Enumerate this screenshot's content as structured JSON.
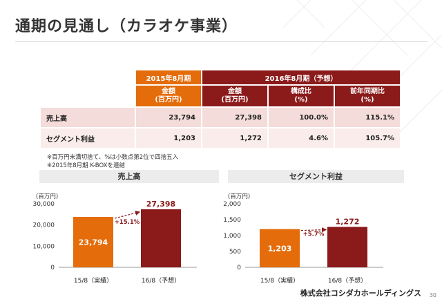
{
  "page": {
    "title": "通期の見通し（カラオケ事業）",
    "company": "株式会社コシダカホールディングス",
    "page_number": "30"
  },
  "table": {
    "header_2015": "2015年8月期",
    "header_2016": "2016年8月期（予想）",
    "sub_amount_2015": "金額\n(百万円)",
    "sub_amount_2016": "金額\n(百万円)",
    "sub_ratio": "構成比\n(%)",
    "sub_yoy": "前年同期比\n(%)",
    "rows": [
      {
        "label": "売上高",
        "v2015": "23,794",
        "v2016": "27,398",
        "ratio": "100.0%",
        "yoy": "115.1%"
      },
      {
        "label": "セグメント利益",
        "v2015": "1,203",
        "v2016": "1,272",
        "ratio": "4.6%",
        "yoy": "105.7%"
      }
    ]
  },
  "notes": [
    "※百万円未満切捨て、%は小数点第2位で四捨五入",
    "※2015年8月期 K-BOXを連結"
  ],
  "colors": {
    "orange": "#e46c0a",
    "red": "#8b1a1a",
    "arrow": "#8b1a1a",
    "growth_text": "#8b1a1a"
  },
  "chart_data": [
    {
      "type": "bar",
      "title": "売上高",
      "unit": "(百万円)",
      "categories": [
        "15/8（実績）",
        "16/8（予想）"
      ],
      "values": [
        23794,
        27398
      ],
      "value_labels": [
        "23,794",
        "27,398"
      ],
      "yticks": [
        "30,000",
        "20,000",
        "10,000",
        "0"
      ],
      "ylim": [
        0,
        30000
      ],
      "growth_label": "+15.1%"
    },
    {
      "type": "bar",
      "title": "セグメント利益",
      "unit": "(百万円)",
      "categories": [
        "15/8（実績）",
        "16/8（予想）"
      ],
      "values": [
        1203,
        1272
      ],
      "value_labels": [
        "1,203",
        "1,272"
      ],
      "yticks": [
        "2,000",
        "1,500",
        "1,000",
        "500",
        "0"
      ],
      "ylim": [
        0,
        2000
      ],
      "growth_label": "+5.7%"
    }
  ]
}
